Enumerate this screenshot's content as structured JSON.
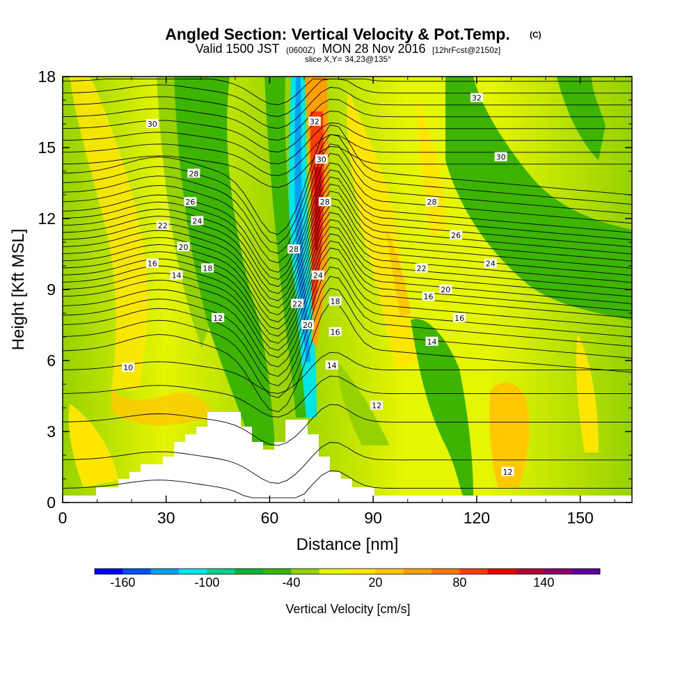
{
  "header": {
    "title": "Angled Section: Vertical Velocity & Pot.Temp.",
    "title_unit": "(C)",
    "valid_prefix": "Valid 1500 JST",
    "valid_utc": "(0600Z)",
    "valid_date": "MON 28 Nov 2016",
    "forecast": "[12hrFcst@2150z]",
    "slice": "slice X,Y= 34,23@135°"
  },
  "chart_data": {
    "type": "heatmap",
    "title": "Angled Section: Vertical Velocity & Pot.Temp. (C)",
    "xlabel": "Distance [nm]",
    "ylabel": "Height [Kft MSL]",
    "xlim": [
      0,
      165
    ],
    "ylim": [
      0,
      18
    ],
    "x_ticks": [
      "0",
      "30",
      "60",
      "90",
      "120",
      "150"
    ],
    "y_ticks": [
      "0",
      "3",
      "6",
      "9",
      "12",
      "15",
      "18"
    ],
    "colorbar": {
      "label": "Vertical Velocity [cm/s]",
      "tick_labels": [
        "-160",
        "-100",
        "-40",
        "20",
        "80",
        "140"
      ],
      "tick_values": [
        -160,
        -100,
        -40,
        20,
        80,
        140
      ],
      "range": [
        -180,
        180
      ],
      "step": 20,
      "colors": [
        "#0000f0",
        "#0050f5",
        "#00a0f5",
        "#00e6e6",
        "#00d28c",
        "#00b43c",
        "#3cb400",
        "#96d200",
        "#e6f500",
        "#ffe600",
        "#ffc800",
        "#ffa000",
        "#ff7800",
        "#ff3c00",
        "#e60000",
        "#b40032",
        "#8c0064",
        "#5a0096"
      ]
    },
    "contour_labels": [
      {
        "value": "30",
        "x": 26,
        "y": 16.0
      },
      {
        "value": "32",
        "x": 120,
        "y": 17.1
      },
      {
        "value": "32",
        "x": 73,
        "y": 16.1
      },
      {
        "value": "30",
        "x": 75,
        "y": 14.5
      },
      {
        "value": "30",
        "x": 127,
        "y": 14.6
      },
      {
        "value": "28",
        "x": 38,
        "y": 13.9
      },
      {
        "value": "28",
        "x": 76,
        "y": 12.7
      },
      {
        "value": "28",
        "x": 107,
        "y": 12.7
      },
      {
        "value": "26",
        "x": 37,
        "y": 12.7
      },
      {
        "value": "26",
        "x": 114,
        "y": 11.3
      },
      {
        "value": "24",
        "x": 39,
        "y": 11.9
      },
      {
        "value": "24",
        "x": 74,
        "y": 9.6
      },
      {
        "value": "24",
        "x": 124,
        "y": 10.1
      },
      {
        "value": "22",
        "x": 29,
        "y": 11.7
      },
      {
        "value": "22",
        "x": 68,
        "y": 8.4
      },
      {
        "value": "22",
        "x": 104,
        "y": 9.9
      },
      {
        "value": "28",
        "x": 67,
        "y": 10.7
      },
      {
        "value": "20",
        "x": 35,
        "y": 10.8
      },
      {
        "value": "20",
        "x": 71,
        "y": 7.5
      },
      {
        "value": "20",
        "x": 111,
        "y": 9.0
      },
      {
        "value": "18",
        "x": 42,
        "y": 9.9
      },
      {
        "value": "18",
        "x": 79,
        "y": 8.5
      },
      {
        "value": "16",
        "x": 26,
        "y": 10.1
      },
      {
        "value": "16",
        "x": 79,
        "y": 7.2
      },
      {
        "value": "16",
        "x": 106,
        "y": 8.7
      },
      {
        "value": "16",
        "x": 115,
        "y": 7.8
      },
      {
        "value": "14",
        "x": 33,
        "y": 9.6
      },
      {
        "value": "14",
        "x": 78,
        "y": 5.8
      },
      {
        "value": "14",
        "x": 107,
        "y": 6.8
      },
      {
        "value": "12",
        "x": 45,
        "y": 7.8
      },
      {
        "value": "12",
        "x": 91,
        "y": 4.1
      },
      {
        "value": "12",
        "x": 129,
        "y": 1.3
      },
      {
        "value": "10",
        "x": 19,
        "y": 5.7
      }
    ]
  }
}
